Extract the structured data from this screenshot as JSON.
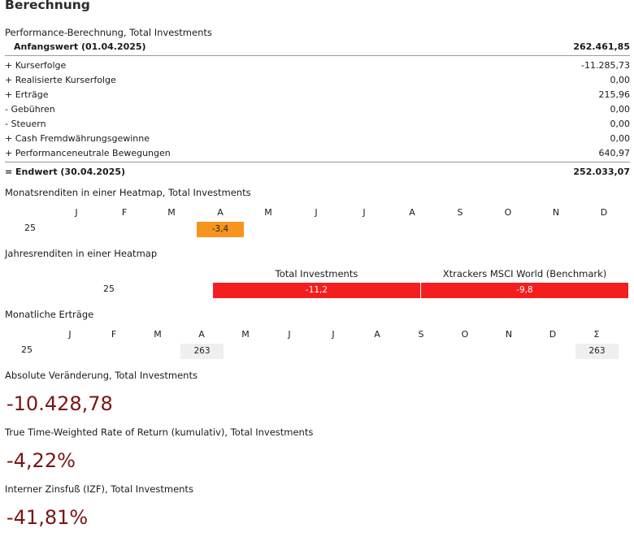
{
  "title": "Berechnung",
  "performance": {
    "heading": "Performance-Berechnung, Total Investments",
    "start": {
      "label": "Anfangswert (01.04.2025)",
      "value": "262.461,85"
    },
    "rows": [
      {
        "label": "+ Kurserfolge",
        "value": "-11.285,73"
      },
      {
        "label": "+ Realisierte Kurserfolge",
        "value": "0,00"
      },
      {
        "label": "+ Erträge",
        "value": "215,96"
      },
      {
        "label": "-  Gebühren",
        "value": "0,00"
      },
      {
        "label": "-  Steuern",
        "value": "0,00"
      },
      {
        "label": "+ Cash Fremdwährungsgewinne",
        "value": "0,00"
      },
      {
        "label": "+ Performanceneutrale Bewegungen",
        "value": "640,97"
      }
    ],
    "end": {
      "label": "= Endwert (30.04.2025)",
      "value": "252.033,07"
    }
  },
  "monthly_heatmap": {
    "heading": "Monatsrenditen in einer Heatmap, Total Investments",
    "months": [
      "J",
      "F",
      "M",
      "A",
      "M",
      "J",
      "J",
      "A",
      "S",
      "O",
      "N",
      "D"
    ],
    "year": "25",
    "cell_value": "-3,4",
    "cell_color": "#f7941d"
  },
  "yearly_heatmap": {
    "heading": "Jahresrenditen in einer Heatmap",
    "col1": "Total Investments",
    "col2": "Xtrackers MSCI World (Benchmark)",
    "year": "25",
    "val1": "-11,2",
    "val2": "-9,8",
    "cell_color": "#f51e1e"
  },
  "monthly_income": {
    "heading": "Monatliche Erträge",
    "months": [
      "J",
      "F",
      "M",
      "A",
      "M",
      "J",
      "J",
      "A",
      "S",
      "O",
      "N",
      "D",
      "Σ"
    ],
    "year": "25",
    "april_value": "263",
    "sum_value": "263"
  },
  "absolute_change": {
    "heading": "Absolute Veränderung, Total Investments",
    "value": "-10.428,78"
  },
  "ttwror": {
    "heading": "True Time-Weighted Rate of Return (kumulativ), Total Investments",
    "value": "-4,22%"
  },
  "irr": {
    "heading": "Interner Zinsfuß (IZF), Total Investments",
    "value": "-41,81%"
  },
  "colors": {
    "negative_value": "#7b1414"
  }
}
